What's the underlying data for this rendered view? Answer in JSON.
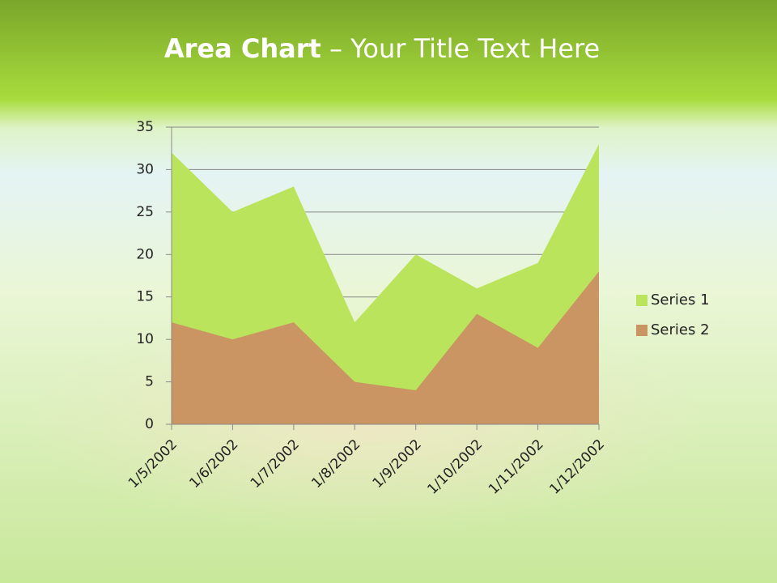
{
  "chart_data": {
    "type": "area",
    "title": {
      "bold": "Area Chart",
      "rest": "– Your Title Text Here"
    },
    "categories": [
      "1/5/2002",
      "1/6/2002",
      "1/7/2002",
      "1/8/2002",
      "1/9/2002",
      "1/10/2002",
      "1/11/2002",
      "1/12/2002"
    ],
    "series": [
      {
        "name": "Series 1",
        "color": "#b9e45c",
        "values": [
          32,
          25,
          28,
          12,
          20,
          16,
          19,
          33
        ]
      },
      {
        "name": "Series 2",
        "color": "#cb9463",
        "values": [
          12,
          10,
          12,
          5,
          4,
          13,
          9,
          18
        ]
      }
    ],
    "ylim": [
      0,
      35
    ],
    "yticks": [
      0,
      5,
      10,
      15,
      20,
      25,
      30,
      35
    ],
    "grid": true,
    "legend": "right"
  }
}
